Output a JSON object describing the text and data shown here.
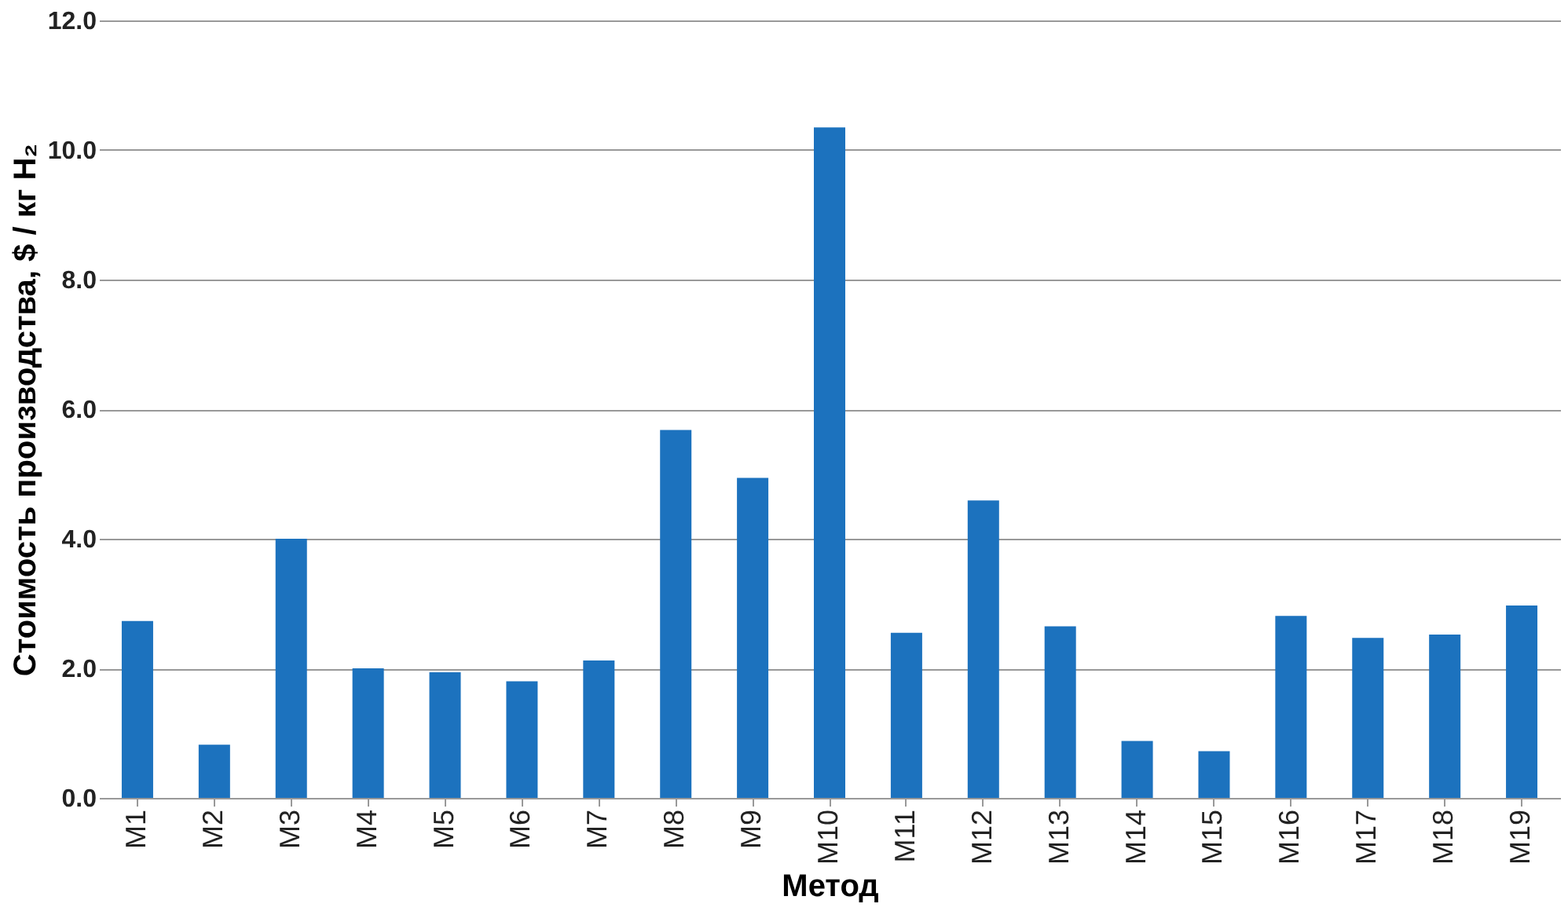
{
  "chart_data": {
    "type": "bar",
    "xlabel": "Метод",
    "ylabel": "Стоимость производства, $ / кг H₂",
    "categories": [
      "M1",
      "M2",
      "M3",
      "M4",
      "M5",
      "M6",
      "M7",
      "M8",
      "M9",
      "M10",
      "M11",
      "M12",
      "M13",
      "M14",
      "M15",
      "M16",
      "M17",
      "M18",
      "M19"
    ],
    "values": [
      2.73,
      0.82,
      4.0,
      2.0,
      1.94,
      1.8,
      2.12,
      5.68,
      4.94,
      10.35,
      2.55,
      4.59,
      2.65,
      0.88,
      0.72,
      2.81,
      2.47,
      2.52,
      2.97
    ],
    "color": "#1c72be",
    "ylim": [
      0,
      12
    ],
    "yticks": [
      {
        "value": 0,
        "label": "0.0"
      },
      {
        "value": 2,
        "label": "2.0"
      },
      {
        "value": 4,
        "label": "4.0"
      },
      {
        "value": 6,
        "label": "6.0"
      },
      {
        "value": 8,
        "label": "8.0"
      },
      {
        "value": 10,
        "label": "10.0"
      },
      {
        "value": 12,
        "label": "12.0"
      }
    ],
    "grid": "y"
  }
}
